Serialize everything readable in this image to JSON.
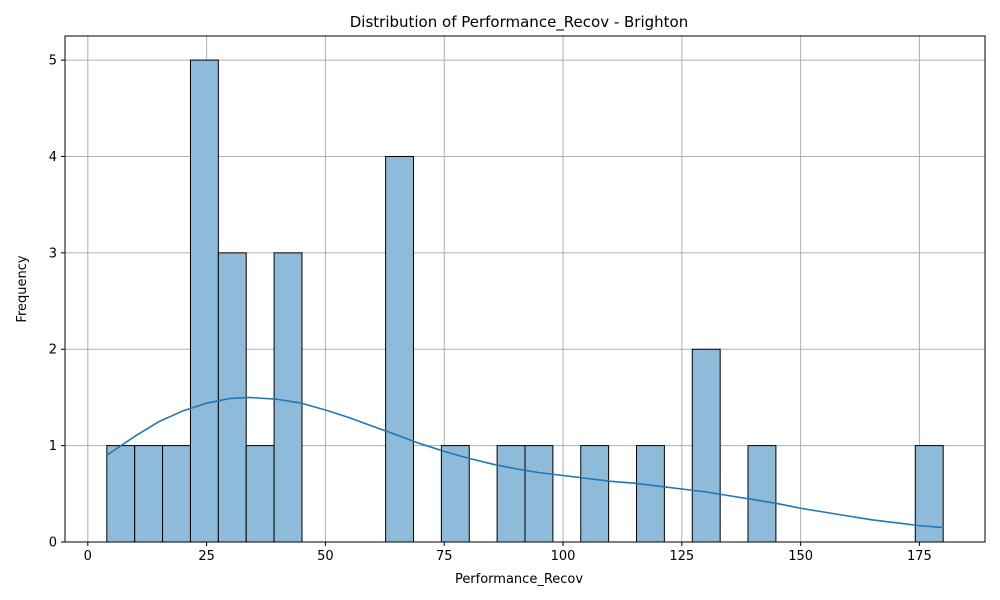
{
  "chart_data": {
    "type": "bar",
    "title": "Distribution of Performance_Recov - Brighton",
    "xlabel": "Performance_Recov",
    "ylabel": "Frequency",
    "xlim": [
      -4.8,
      188.8
    ],
    "ylim": [
      0,
      5.25
    ],
    "xticks": [
      0,
      25,
      50,
      75,
      100,
      125,
      150,
      175
    ],
    "yticks": [
      0,
      1,
      2,
      3,
      4,
      5
    ],
    "grid": true,
    "bin_edges": [
      4.0,
      9.87,
      15.73,
      21.6,
      27.47,
      33.33,
      39.2,
      45.07,
      50.93,
      56.8,
      62.67,
      68.53,
      74.4,
      80.27,
      86.13,
      92.0,
      97.87,
      103.73,
      109.6,
      115.47,
      121.33,
      127.2,
      133.07,
      138.93,
      144.8,
      150.67,
      156.53,
      162.4,
      168.27,
      174.13,
      180.0
    ],
    "values": [
      1,
      1,
      1,
      5,
      3,
      1,
      3,
      0,
      0,
      0,
      4,
      0,
      1,
      0,
      1,
      1,
      0,
      1,
      0,
      1,
      0,
      2,
      0,
      1,
      0,
      0,
      0,
      0,
      0,
      1
    ],
    "bar_color": "#8fbbdb",
    "bar_edge_color": "#000000",
    "kde": {
      "color": "#1f77b4",
      "x": [
        4,
        10,
        15,
        20,
        25,
        30,
        34,
        40,
        45,
        50,
        55,
        60,
        65,
        70,
        75,
        80,
        85,
        90,
        95,
        100,
        105,
        110,
        115,
        120,
        125,
        130,
        135,
        140,
        145,
        150,
        155,
        160,
        165,
        170,
        175,
        180
      ],
      "y": [
        0.9,
        1.1,
        1.25,
        1.36,
        1.44,
        1.49,
        1.5,
        1.48,
        1.44,
        1.37,
        1.29,
        1.2,
        1.11,
        1.02,
        0.94,
        0.87,
        0.81,
        0.76,
        0.72,
        0.69,
        0.66,
        0.63,
        0.61,
        0.58,
        0.55,
        0.52,
        0.48,
        0.44,
        0.4,
        0.35,
        0.31,
        0.27,
        0.23,
        0.2,
        0.17,
        0.15
      ]
    }
  }
}
